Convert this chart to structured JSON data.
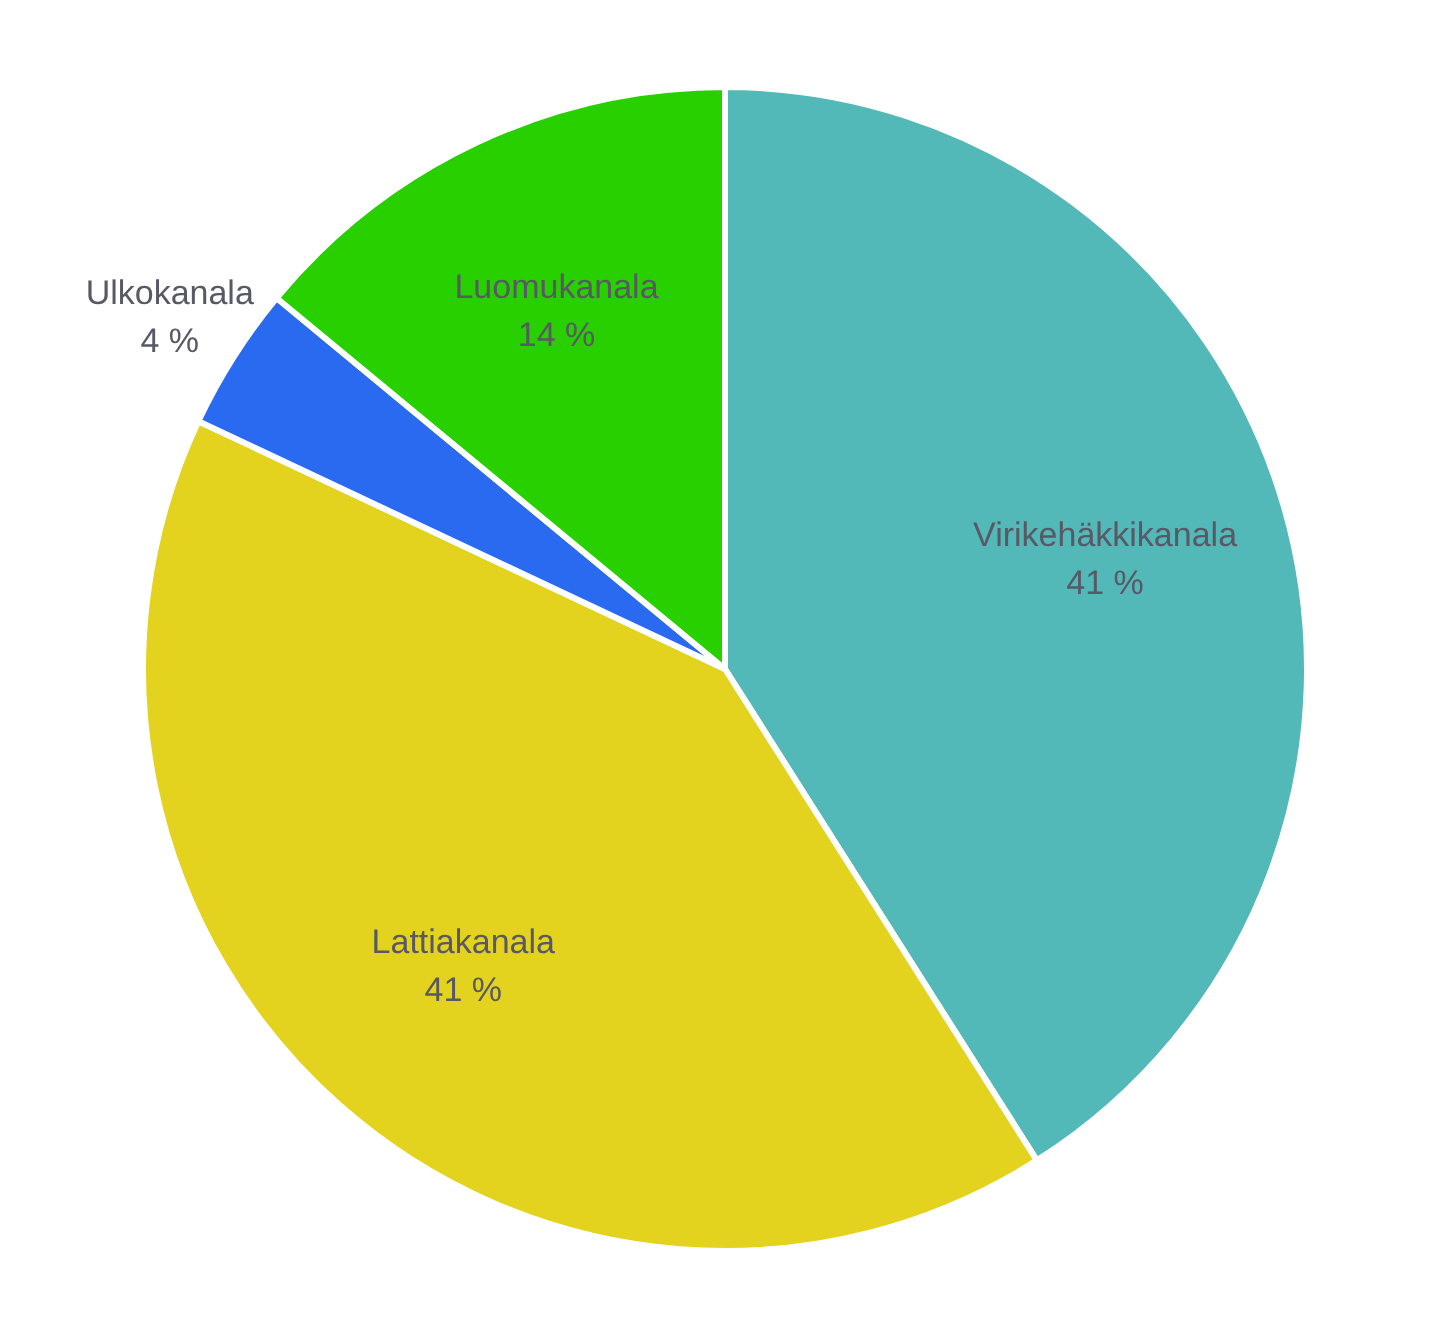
{
  "chart_data": {
    "type": "pie",
    "categories": [
      "Virikehäkkikanala",
      "Lattiakanala",
      "Ulkokanala",
      "Luomukanala"
    ],
    "values": [
      41,
      41,
      4,
      14
    ],
    "colors": [
      "#52b8b8",
      "#e3d31e",
      "#2a6af0",
      "#28d000"
    ],
    "value_labels": [
      "41 %",
      "41 %",
      "4 %",
      "14 %"
    ],
    "legend": false
  }
}
